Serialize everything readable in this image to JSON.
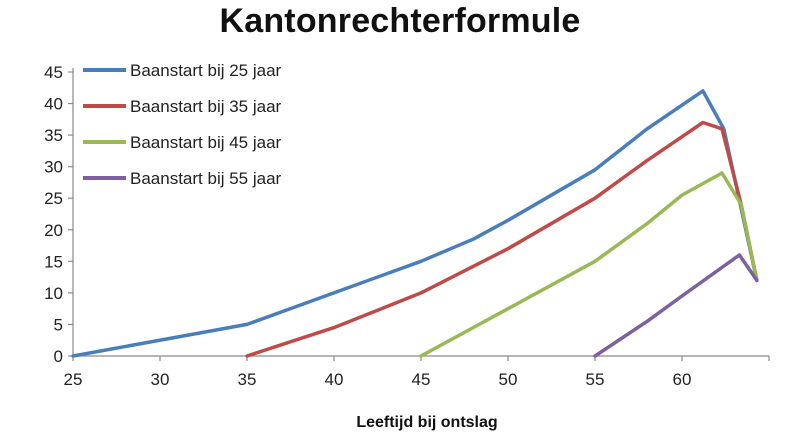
{
  "chart_data": {
    "type": "line",
    "title": "Kantonrechterformule",
    "xlabel": "Leeftijd bij ontslag",
    "ylabel": "",
    "xlim": [
      25,
      65
    ],
    "ylim": [
      0,
      45
    ],
    "xticks": [
      25,
      30,
      35,
      40,
      45,
      50,
      55,
      60
    ],
    "yticks": [
      0,
      5,
      10,
      15,
      20,
      25,
      30,
      35,
      40,
      45
    ],
    "grid": false,
    "legend_position": "top-left",
    "series": [
      {
        "name": "Baanstart bij 25 jaar",
        "color": "#4a7ebb",
        "points": [
          [
            25,
            0
          ],
          [
            32,
            3.5
          ],
          [
            35,
            5
          ],
          [
            45,
            15
          ],
          [
            48,
            18.5
          ],
          [
            50,
            21.5
          ],
          [
            55,
            29.5
          ],
          [
            58,
            36
          ],
          [
            61.2,
            42
          ],
          [
            62.4,
            36
          ],
          [
            64.3,
            12
          ]
        ]
      },
      {
        "name": "Baanstart bij 35 jaar",
        "color": "#be4b48",
        "points": [
          [
            35,
            0
          ],
          [
            40,
            4.5
          ],
          [
            45,
            10
          ],
          [
            50,
            17
          ],
          [
            55,
            25
          ],
          [
            58,
            31
          ],
          [
            61.2,
            37
          ],
          [
            62.3,
            36
          ],
          [
            63.4,
            24
          ],
          [
            64.3,
            12
          ]
        ]
      },
      {
        "name": "Baanstart bij 45 jaar",
        "color": "#98b954",
        "points": [
          [
            45,
            0
          ],
          [
            48,
            4.5
          ],
          [
            50,
            7.5
          ],
          [
            55,
            15
          ],
          [
            58,
            21
          ],
          [
            60,
            25.5
          ],
          [
            62.3,
            29
          ],
          [
            63.4,
            24
          ],
          [
            64.3,
            12
          ]
        ]
      },
      {
        "name": "Baanstart bij 55 jaar",
        "color": "#7d60a0",
        "points": [
          [
            55,
            0
          ],
          [
            58,
            5.5
          ],
          [
            60,
            9.5
          ],
          [
            63.3,
            16
          ],
          [
            64.3,
            12
          ]
        ]
      }
    ]
  }
}
